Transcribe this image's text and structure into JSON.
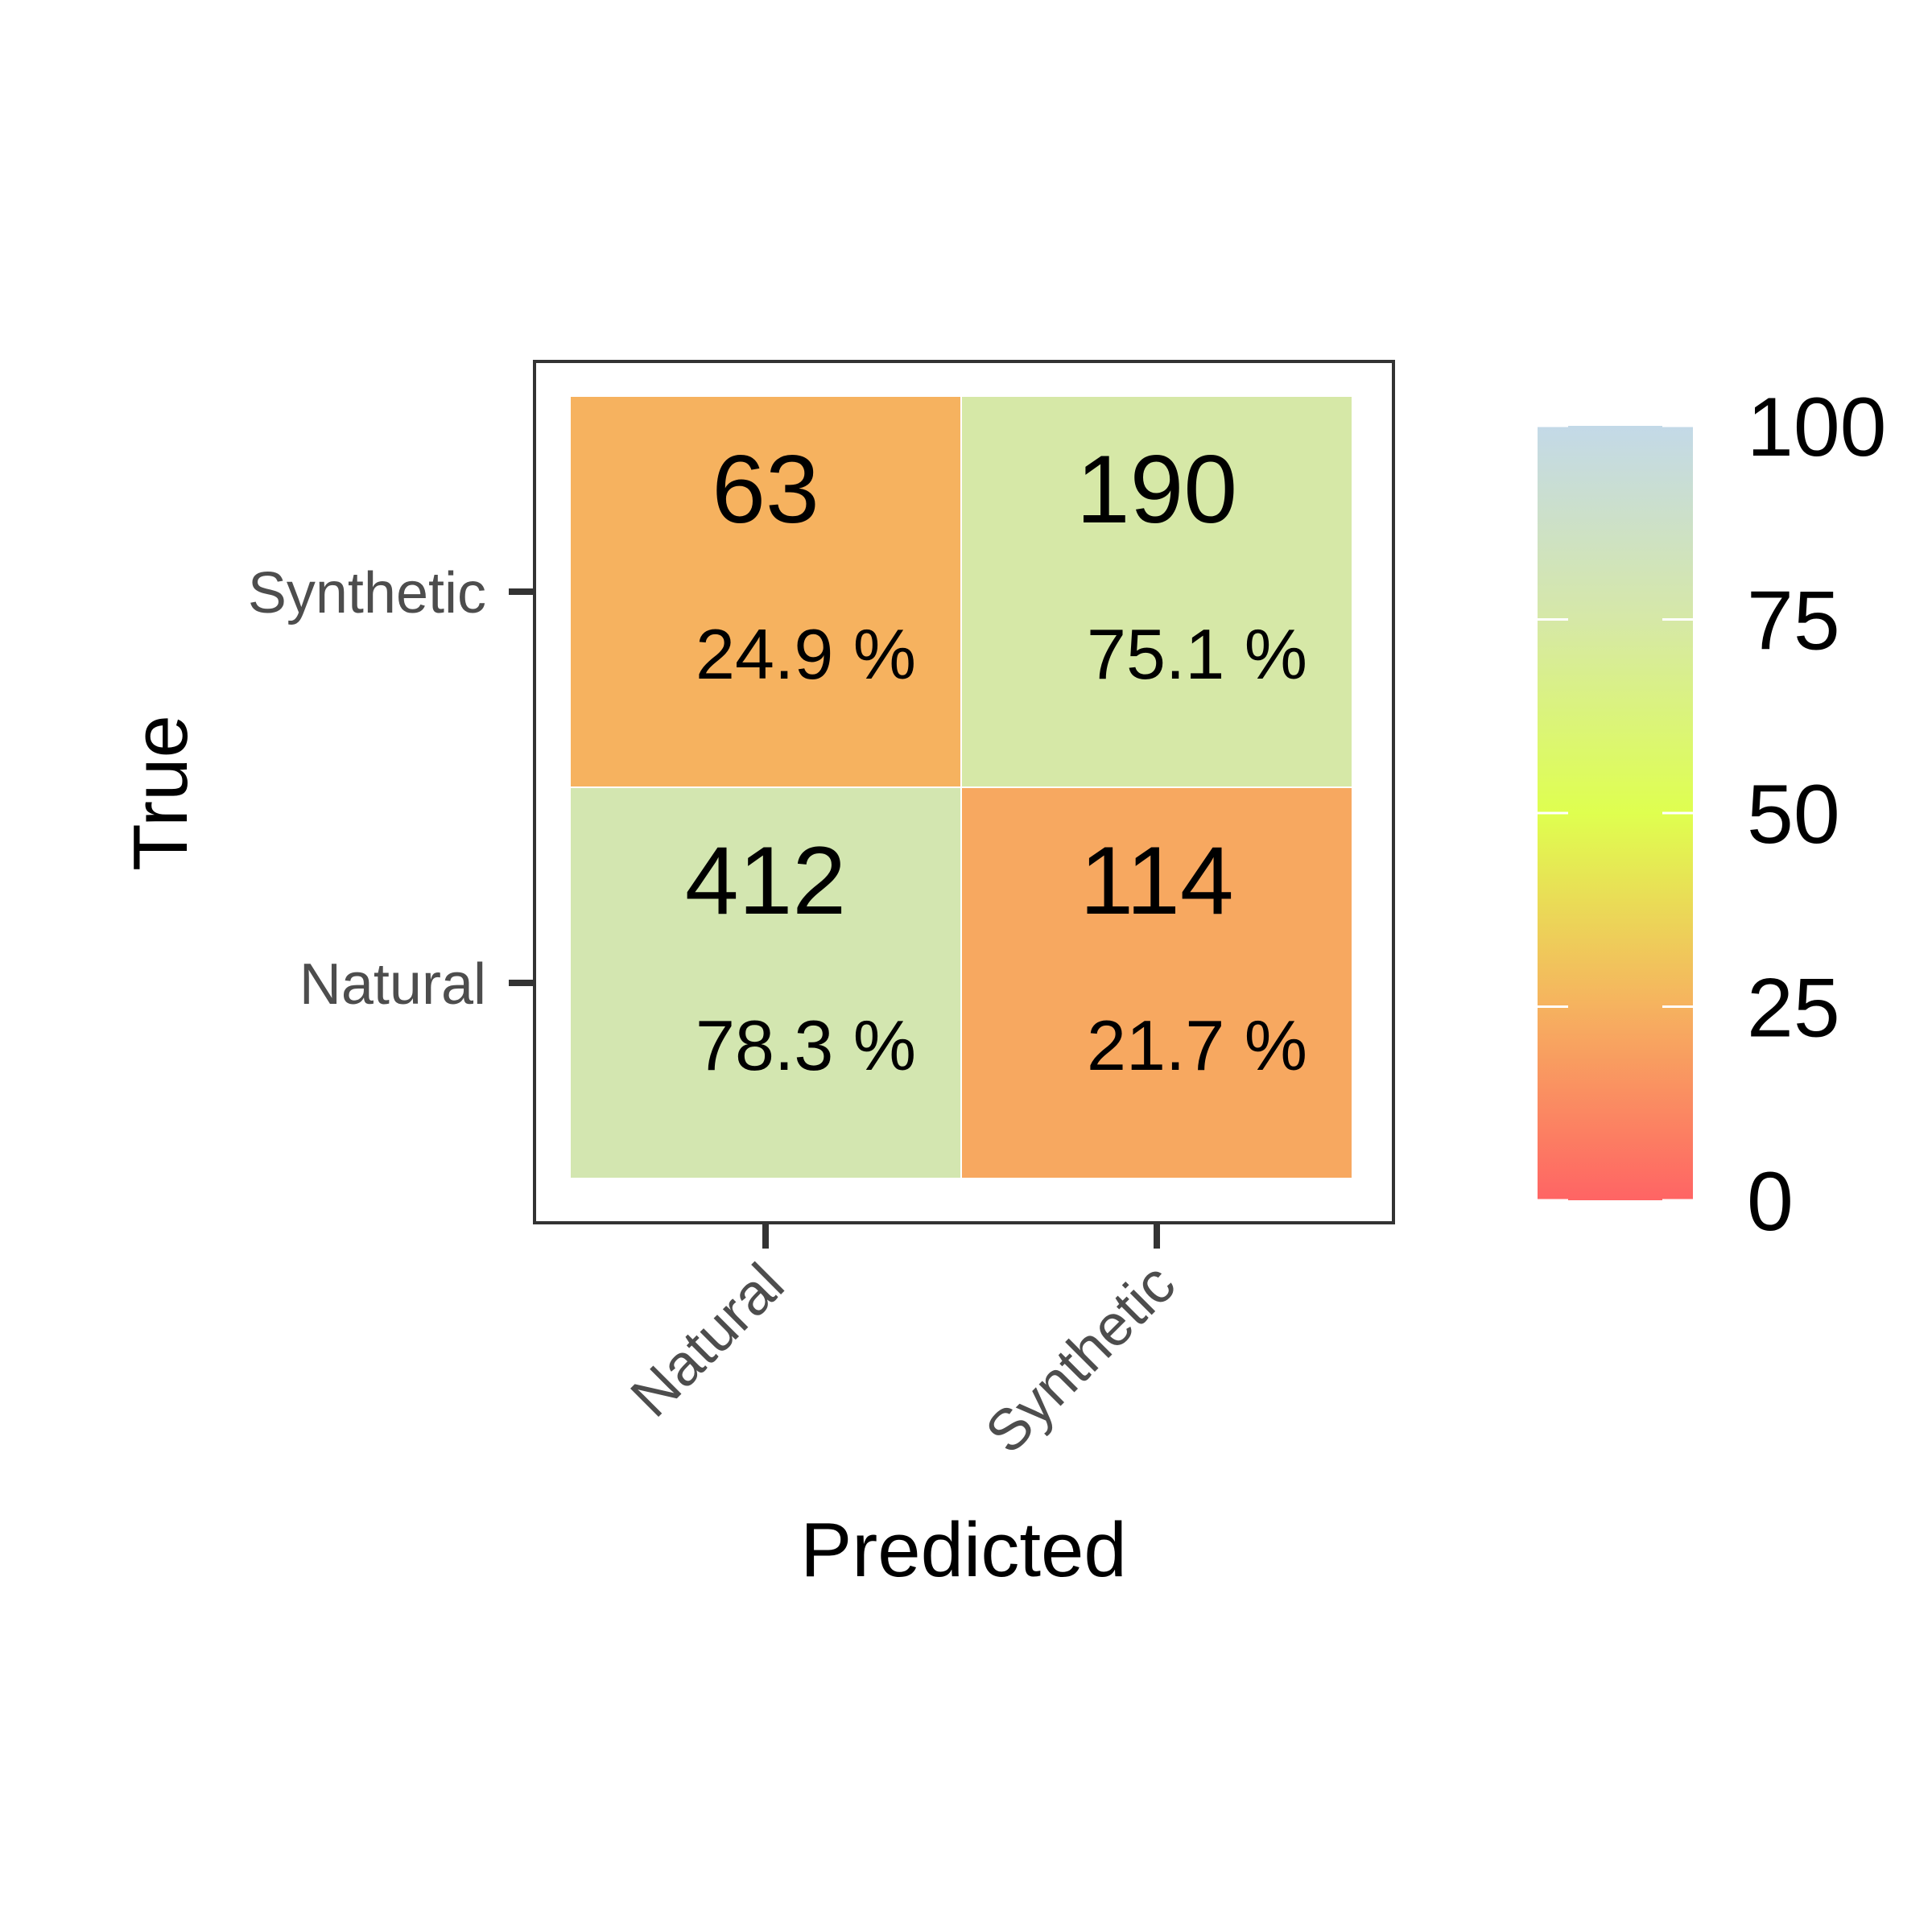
{
  "chart_data": {
    "type": "heatmap",
    "title": "",
    "xlabel": "Predicted",
    "ylabel": "True",
    "x_categories": [
      "Natural",
      "Synthetic"
    ],
    "y_categories": [
      "Synthetic",
      "Natural"
    ],
    "cells": [
      {
        "true": "Synthetic",
        "predicted": "Natural",
        "count": 63,
        "percent": 24.9,
        "count_label": "63",
        "percent_label": "24.9 %"
      },
      {
        "true": "Synthetic",
        "predicted": "Synthetic",
        "count": 190,
        "percent": 75.1,
        "count_label": "190",
        "percent_label": "75.1 %"
      },
      {
        "true": "Natural",
        "predicted": "Natural",
        "count": 412,
        "percent": 78.3,
        "count_label": "412",
        "percent_label": "78.3 %"
      },
      {
        "true": "Natural",
        "predicted": "Synthetic",
        "count": 114,
        "percent": 21.7,
        "count_label": "114",
        "percent_label": "21.7 %"
      }
    ],
    "colorbar": {
      "range": [
        0,
        100
      ],
      "ticks": [
        0,
        25,
        50,
        75,
        100
      ],
      "tick_labels": [
        "0",
        "25",
        "50",
        "75",
        "100"
      ],
      "colors": [
        {
          "stop": 0,
          "color": "#ff6464"
        },
        {
          "stop": 25,
          "color": "#f6b25f"
        },
        {
          "stop": 50,
          "color": "#dfff4f"
        },
        {
          "stop": 75,
          "color": "#d6e8a7"
        },
        {
          "stop": 100,
          "color": "#c3d9e8"
        }
      ]
    },
    "x_tick_rotation": "45 degrees"
  }
}
